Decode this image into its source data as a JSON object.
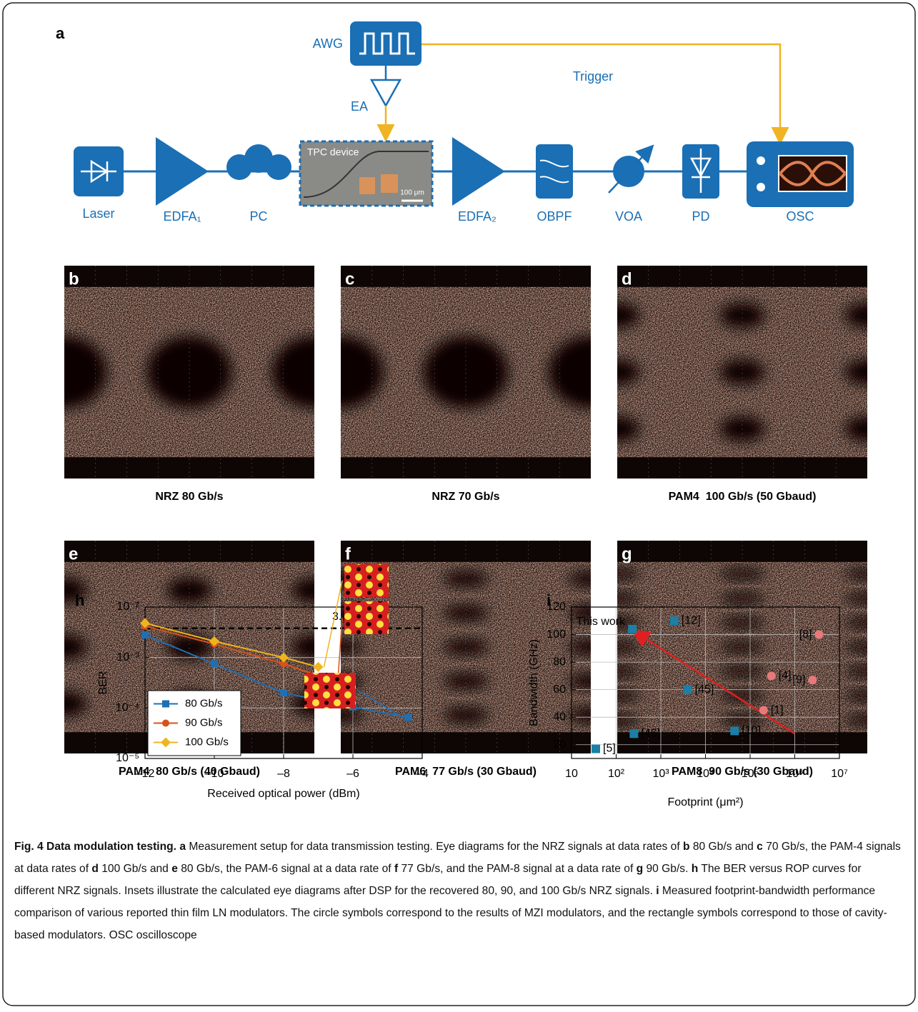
{
  "panel_a": {
    "label": "a",
    "awg": "AWG",
    "trigger": "Trigger",
    "ea": "EA",
    "device": "TPC device",
    "scale_bar": "100 μm",
    "laser": "Laser",
    "edfa1": "EDFA₁",
    "pc": "PC",
    "edfa2": "EDFA₂",
    "obpf": "OBPF",
    "voa": "VOA",
    "pd": "PD",
    "osc": "OSC"
  },
  "eye_diagrams": [
    {
      "label": "b",
      "caption": "NRZ 80 Gb/s"
    },
    {
      "label": "c",
      "caption": "NRZ 70 Gb/s"
    },
    {
      "label": "d",
      "caption": "PAM4  100 Gb/s (50 Gbaud)"
    },
    {
      "label": "e",
      "caption": "PAM4  80 Gb/s (40 Gbaud)"
    },
    {
      "label": "f",
      "caption": "PAM6  77 Gb/s (30 Gbaud)"
    },
    {
      "label": "g",
      "caption": "PAM8  90 Gb/s (30 Gbaud)"
    }
  ],
  "chart_data": [
    {
      "type": "line",
      "panel": "h",
      "xlabel": "Received optical power (dBm)",
      "ylabel": "BER",
      "xlim": [
        -12,
        -4
      ],
      "ylim": [
        1e-05,
        0.01
      ],
      "log_y": true,
      "grid": true,
      "xticks": [
        {
          "value": -12,
          "label": "–12"
        },
        {
          "value": -10,
          "label": "–10"
        },
        {
          "value": -8,
          "label": "–8"
        },
        {
          "value": -6,
          "label": "–6"
        },
        {
          "value": -4,
          "label": "–4"
        }
      ],
      "yticks": [
        {
          "value": 1e-05,
          "label": "10⁻⁵"
        },
        {
          "value": 0.0001,
          "label": "10⁻⁴"
        },
        {
          "value": 0.001,
          "label": "10⁻³"
        },
        {
          "value": 0.01,
          "label": "10⁻²"
        }
      ],
      "threshold": 0.0038,
      "threshold_label": "3.8e–3",
      "legend": "lower left",
      "series": [
        {
          "name": "80 Gb/s",
          "color": "#1f6fb4",
          "marker": "square",
          "x": [
            -12,
            -10,
            -8,
            -6,
            -4.4
          ],
          "values": [
            0.0028,
            0.00075,
            0.0002,
            0.000105,
            6.5e-05
          ]
        },
        {
          "name": "90 Gb/s",
          "color": "#d4541c",
          "marker": "circle",
          "x": [
            -12,
            -10,
            -8,
            -6.6
          ],
          "values": [
            0.0042,
            0.00185,
            0.00075,
            0.00035
          ]
        },
        {
          "name": "100 Gb/s",
          "color": "#eeb51f",
          "marker": "diamond",
          "x": [
            -12,
            -10,
            -8,
            -7
          ],
          "values": [
            0.0048,
            0.0021,
            0.001,
            0.00065
          ]
        }
      ]
    },
    {
      "type": "scatter",
      "panel": "i",
      "xlabel": "Footprint (μm²)",
      "ylabel": "Bandwidth (GHz)",
      "xlim": [
        10,
        10000000
      ],
      "ylim": [
        10,
        120
      ],
      "log_x": true,
      "grid": true,
      "xticks": [
        10,
        {
          "value": 100,
          "label": "10²"
        },
        {
          "value": 1000,
          "label": "10³"
        },
        {
          "value": 10000,
          "label": "10⁴"
        },
        {
          "value": 100000,
          "label": "10⁵"
        },
        {
          "value": 1000000,
          "label": "10⁶"
        },
        {
          "value": 10000000,
          "label": "10⁷"
        }
      ],
      "yticks": [
        20,
        40,
        60,
        80,
        100,
        120
      ],
      "series": [
        {
          "color": "#1b7fa6",
          "marker": "square",
          "x": [
            230,
            2000,
            4000,
            250,
            35,
            45000
          ],
          "values": [
            104,
            110,
            60,
            28,
            17,
            30
          ],
          "labels": [
            "This work",
            "[12]",
            "[45]",
            "[46]",
            "[5]",
            "[10]"
          ]
        },
        {
          "color": "#e8797a",
          "marker": "circle",
          "x": [
            3500000,
            300000,
            2500000,
            200000
          ],
          "values": [
            100,
            70,
            67,
            45
          ],
          "labels": [
            "[8]",
            "[4]",
            "[9]",
            "[1]"
          ]
        }
      ],
      "arrow": {
        "color": "#e02020",
        "x": [
          1000000,
          260
        ],
        "y": [
          28,
          102
        ]
      }
    }
  ],
  "caption": {
    "segments": [
      {
        "text": "Fig. 4 Data modulation testing.",
        "bold": true
      },
      {
        "text": " ",
        "bold": false
      },
      {
        "text": "a",
        "bold": true
      },
      {
        "text": " Measurement setup for data transmission testing. Eye diagrams for the NRZ signals at data rates of ",
        "bold": false
      },
      {
        "text": "b",
        "bold": true
      },
      {
        "text": " 80 Gb/s and ",
        "bold": false
      },
      {
        "text": "c",
        "bold": true
      },
      {
        "text": " 70 Gb/s, the PAM-4 signals at data rates of ",
        "bold": false
      },
      {
        "text": "d",
        "bold": true
      },
      {
        "text": " 100 Gb/s and ",
        "bold": false
      },
      {
        "text": "e",
        "bold": true
      },
      {
        "text": " 80 Gb/s, the PAM-6 signal at a data rate of ",
        "bold": false
      },
      {
        "text": "f",
        "bold": true
      },
      {
        "text": " 77 Gb/s, and the PAM-8 signal at a data rate of ",
        "bold": false
      },
      {
        "text": "g",
        "bold": true
      },
      {
        "text": " 90 Gb/s. ",
        "bold": false
      },
      {
        "text": "h",
        "bold": true
      },
      {
        "text": " The BER versus ROP curves for different NRZ signals. Insets illustrate the calculated eye diagrams after DSP for the recovered 80, 90, and 100 Gb/s NRZ signals. ",
        "bold": false
      },
      {
        "text": "i",
        "bold": true
      },
      {
        "text": " Measured footprint-bandwidth performance comparison of various reported thin film LN modulators. The circle symbols correspond to the results of MZI modulators, and the rectangle symbols correspond to those of cavity-based modulators. OSC oscilloscope",
        "bold": false
      }
    ]
  }
}
